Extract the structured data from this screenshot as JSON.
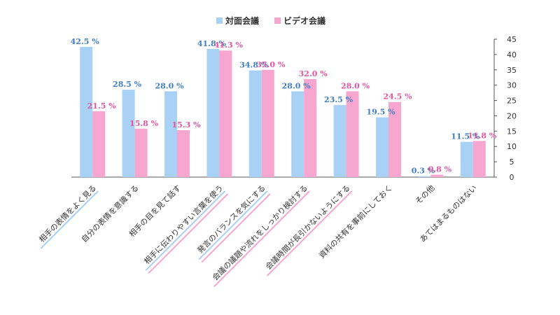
{
  "chart_data": {
    "type": "bar",
    "categories": [
      "相手の表情をよく見る",
      "自分の表情を意識する",
      "相手の目を見て話す",
      "相手に伝わりやすい言葉を使う",
      "発言のバランスを気にする",
      "会議の議題や流れをしっかり検討する",
      "会議時間が長引かないようにする",
      "資料の共有を事前にしておく",
      "その他",
      "あてはまるものはない"
    ],
    "series": [
      {
        "name": "対面会議",
        "values": [
          42.5,
          28.5,
          28.0,
          41.8,
          34.8,
          28.0,
          23.5,
          19.5,
          0.3,
          11.5
        ]
      },
      {
        "name": "ビデオ会議",
        "values": [
          21.5,
          15.8,
          15.3,
          41.3,
          35.0,
          32.0,
          28.0,
          24.5,
          0.8,
          11.8
        ]
      }
    ],
    "data_labels": [
      [
        "42.5 %",
        "28.5 %",
        "28.0 %",
        "41.8 %",
        "34.8 %",
        "28.0 %",
        "23.5 %",
        "19.5 %",
        "0.3 %",
        "11.5 %"
      ],
      [
        "21.5 %",
        "15.8 %",
        "15.3 %",
        "41.3 %",
        "35.0 %",
        "32.0 %",
        "28.0 %",
        "24.5 %",
        "0.8 %",
        "11.8 %"
      ]
    ],
    "yticks": [
      "0",
      "5",
      "10",
      "15",
      "20",
      "25",
      "30",
      "35",
      "40",
      "45"
    ],
    "ylim": [
      0,
      45
    ],
    "y_axis_side": "right",
    "legend_position": "top-center",
    "grid": false,
    "highlighted_categories": {
      "対面会議": [
        0,
        3,
        4
      ],
      "ビデオ会議": [
        3,
        4,
        5,
        6
      ]
    },
    "colors": {
      "series1": "#a9d0f5",
      "series2": "#f7a6cf",
      "label1": "#3f7fc0",
      "label2": "#e0579f",
      "axis": "#555555"
    }
  }
}
